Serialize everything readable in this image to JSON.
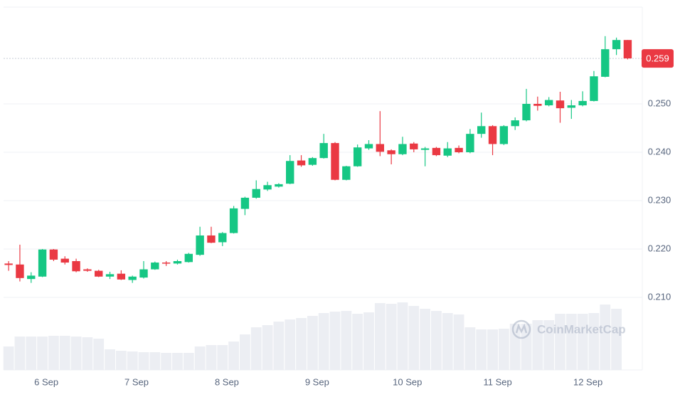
{
  "chart_data": {
    "type": "candlestick",
    "open": [
      0.217,
      0.2168,
      0.2138,
      0.2143,
      0.2199,
      0.218,
      0.2175,
      0.2158,
      0.2155,
      0.2143,
      0.2149,
      0.2136,
      0.2141,
      0.2158,
      0.2172,
      0.217,
      0.2173,
      0.2188,
      0.2228,
      0.2214,
      0.2233,
      0.2283,
      0.2306,
      0.2323,
      0.2329,
      0.2335,
      0.2383,
      0.2374,
      0.2388,
      0.2419,
      0.2343,
      0.2371,
      0.2408,
      0.2417,
      0.2404,
      0.2396,
      0.2418,
      0.2405,
      0.2409,
      0.2393,
      0.2409,
      0.24,
      0.2438,
      0.2454,
      0.2417,
      0.2454,
      0.2466,
      0.25,
      0.2497,
      0.2507,
      0.2492,
      0.2497,
      0.2506,
      0.2556,
      0.2613,
      0.2632
    ],
    "high": [
      0.2175,
      0.2209,
      0.2152,
      0.22,
      0.22,
      0.2185,
      0.218,
      0.216,
      0.2157,
      0.2153,
      0.2156,
      0.2145,
      0.2175,
      0.2174,
      0.2175,
      0.2178,
      0.2192,
      0.2246,
      0.2246,
      0.2235,
      0.2289,
      0.2308,
      0.2342,
      0.2339,
      0.2336,
      0.2394,
      0.2394,
      0.239,
      0.2438,
      0.2421,
      0.2372,
      0.2416,
      0.2425,
      0.2485,
      0.2406,
      0.2432,
      0.2421,
      0.2411,
      0.2411,
      0.2421,
      0.2414,
      0.2448,
      0.2482,
      0.2456,
      0.2456,
      0.2472,
      0.2531,
      0.2515,
      0.2514,
      0.2525,
      0.2508,
      0.2526,
      0.2568,
      0.264,
      0.2637,
      0.2632
    ],
    "low": [
      0.2155,
      0.2133,
      0.213,
      0.2142,
      0.2175,
      0.2168,
      0.2152,
      0.2153,
      0.2142,
      0.2138,
      0.2136,
      0.213,
      0.2139,
      0.2157,
      0.2165,
      0.2168,
      0.2172,
      0.2186,
      0.2212,
      0.2206,
      0.2232,
      0.227,
      0.2304,
      0.232,
      0.2327,
      0.2334,
      0.237,
      0.2372,
      0.2387,
      0.2342,
      0.2342,
      0.237,
      0.2405,
      0.2392,
      0.2375,
      0.2394,
      0.24,
      0.2371,
      0.2392,
      0.239,
      0.2398,
      0.2398,
      0.243,
      0.2394,
      0.2415,
      0.2446,
      0.2464,
      0.2486,
      0.2495,
      0.2461,
      0.2469,
      0.2495,
      0.2505,
      0.2555,
      0.2601,
      0.2592
    ],
    "close": [
      0.2167,
      0.214,
      0.2145,
      0.2199,
      0.2178,
      0.2172,
      0.2154,
      0.2155,
      0.2143,
      0.2148,
      0.2137,
      0.2143,
      0.2158,
      0.2172,
      0.217,
      0.2175,
      0.219,
      0.2228,
      0.2213,
      0.2233,
      0.2284,
      0.2306,
      0.2324,
      0.2332,
      0.2334,
      0.2382,
      0.2373,
      0.2388,
      0.2419,
      0.2343,
      0.2371,
      0.241,
      0.2417,
      0.2401,
      0.2396,
      0.2417,
      0.2406,
      0.2408,
      0.2394,
      0.2408,
      0.24,
      0.2438,
      0.2454,
      0.2417,
      0.2454,
      0.2466,
      0.25,
      0.2496,
      0.2508,
      0.2491,
      0.2497,
      0.2506,
      0.2557,
      0.2613,
      0.2632,
      0.2594
    ],
    "volume": [
      33,
      47,
      47,
      47,
      48,
      48,
      47,
      46,
      44,
      29,
      27,
      26,
      25,
      25,
      24,
      24,
      24,
      33,
      35,
      35,
      40,
      50,
      60,
      63,
      68,
      71,
      73,
      76,
      80,
      82,
      83,
      79,
      81,
      94,
      93,
      95,
      90,
      86,
      83,
      80,
      78,
      60,
      57,
      57,
      58,
      65,
      65,
      70,
      70,
      79,
      79,
      79,
      80,
      92,
      86,
      null
    ],
    "up_color": "#16c784",
    "down_color": "#ea3943",
    "volume_color": "#eceef3",
    "current_price": {
      "value": 0.2594,
      "label": "0.259"
    },
    "ylim": [
      0.195,
      0.27
    ],
    "yticks": [
      {
        "value": 0.21,
        "label": "0.210"
      },
      {
        "value": 0.22,
        "label": "0.220"
      },
      {
        "value": 0.23,
        "label": "0.230"
      },
      {
        "value": 0.24,
        "label": "0.240"
      },
      {
        "value": 0.25,
        "label": "0.250"
      }
    ],
    "xlim": [
      -0.45,
      56.3
    ],
    "xticks": [
      {
        "value": 3.35,
        "label": "6 Sep"
      },
      {
        "value": 11.37,
        "label": "7 Sep"
      },
      {
        "value": 19.39,
        "label": "8 Sep"
      },
      {
        "value": 27.41,
        "label": "9 Sep"
      },
      {
        "value": 35.43,
        "label": "10 Sep"
      },
      {
        "value": 43.45,
        "label": "11 Sep"
      },
      {
        "value": 51.47,
        "label": "12 Sep"
      }
    ],
    "grid": true,
    "watermark": "CoinMarketCap"
  }
}
